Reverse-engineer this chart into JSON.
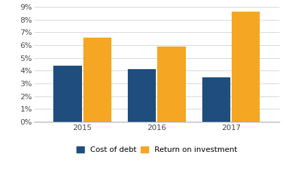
{
  "categories": [
    "2015",
    "2016",
    "2017"
  ],
  "cost_of_debt": [
    0.044,
    0.041,
    0.035
  ],
  "return_on_investment": [
    0.066,
    0.059,
    0.086
  ],
  "bar_color_debt": "#1f4e7e",
  "bar_color_roi": "#f5a623",
  "ylim": [
    0,
    0.09
  ],
  "yticks": [
    0,
    0.01,
    0.02,
    0.03,
    0.04,
    0.05,
    0.06,
    0.07,
    0.08,
    0.09
  ],
  "ytick_labels": [
    "0%",
    "1%",
    "2%",
    "3%",
    "4%",
    "5%",
    "6%",
    "7%",
    "8%",
    "9%"
  ],
  "legend_debt": "Cost of debt",
  "legend_roi": "Return on investment",
  "bar_width": 0.38,
  "bar_gap": 0.02,
  "background_color": "#ffffff",
  "grid_color": "#d0d0d0",
  "axis_color": "#aaaaaa",
  "label_fontsize": 8,
  "legend_fontsize": 8
}
